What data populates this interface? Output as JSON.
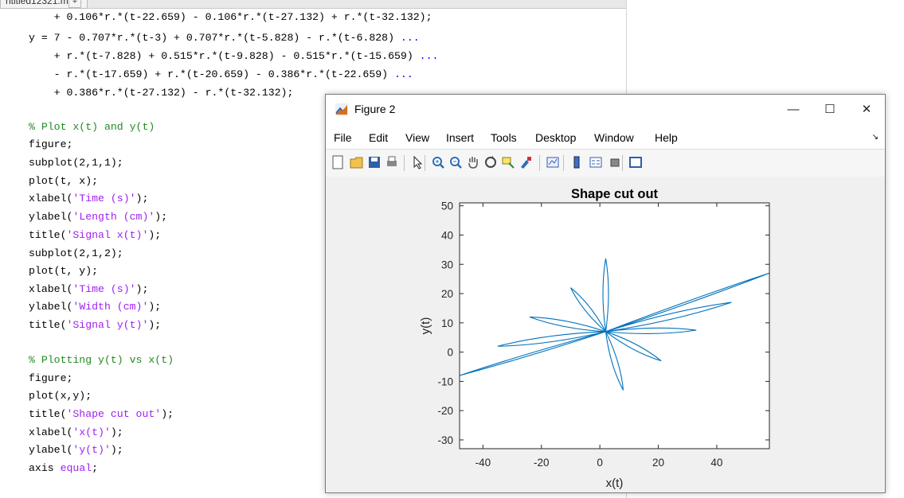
{
  "editor": {
    "tab_label": "ntitled12321.m*",
    "tab_close": "×",
    "tab_add": "+",
    "lines": [
      [
        {
          "t": "    + 0.106*r.*(t-22.659) - 0.106*r.*(t-27.132) + r.*(t-32.132);"
        }
      ],
      [
        {
          "t": "y = 7 - 0.707*r.*(t-3) + 0.707*r.*(t-5.828) - r.*(t-6.828) "
        },
        {
          "t": "...",
          "c": "kw"
        }
      ],
      [
        {
          "t": "    + r.*(t-7.828) + 0.515*r.*(t-9.828) - 0.515*r.*(t-15.659) "
        },
        {
          "t": "...",
          "c": "kw"
        }
      ],
      [
        {
          "t": "    - r.*(t-17.659) + r.*(t-20.659) - 0.386*r.*(t-22.659) "
        },
        {
          "t": "...",
          "c": "kw"
        }
      ],
      [
        {
          "t": "    + 0.386*r.*(t-27.132) - r.*(t-32.132);"
        }
      ],
      [
        {
          "t": ""
        }
      ],
      [
        {
          "t": "% Plot x(t) and y(t)",
          "c": "cmt"
        }
      ],
      [
        {
          "t": "figure;"
        }
      ],
      [
        {
          "t": "subplot(2,1,1);"
        }
      ],
      [
        {
          "t": "plot(t, x);"
        }
      ],
      [
        {
          "t": "xlabel("
        },
        {
          "t": "'Time (s)'",
          "c": "str"
        },
        {
          "t": ");"
        }
      ],
      [
        {
          "t": "ylabel("
        },
        {
          "t": "'Length (cm)'",
          "c": "str"
        },
        {
          "t": ");"
        }
      ],
      [
        {
          "t": "title("
        },
        {
          "t": "'Signal x(t)'",
          "c": "str"
        },
        {
          "t": ");"
        }
      ],
      [
        {
          "t": "subplot(2,1,2);"
        }
      ],
      [
        {
          "t": "plot(t, y);"
        }
      ],
      [
        {
          "t": "xlabel("
        },
        {
          "t": "'Time (s)'",
          "c": "str"
        },
        {
          "t": ");"
        }
      ],
      [
        {
          "t": "ylabel("
        },
        {
          "t": "'Width (cm)'",
          "c": "str"
        },
        {
          "t": ");"
        }
      ],
      [
        {
          "t": "title("
        },
        {
          "t": "'Signal y(t)'",
          "c": "str"
        },
        {
          "t": ");"
        }
      ],
      [
        {
          "t": ""
        }
      ],
      [
        {
          "t": "% Plotting y(t) vs x(t)",
          "c": "cmt"
        }
      ],
      [
        {
          "t": "figure;"
        }
      ],
      [
        {
          "t": "plot(x,y);"
        }
      ],
      [
        {
          "t": "title("
        },
        {
          "t": "'Shape cut out'",
          "c": "str"
        },
        {
          "t": ");"
        }
      ],
      [
        {
          "t": "xlabel("
        },
        {
          "t": "'x(t)'",
          "c": "str"
        },
        {
          "t": ");"
        }
      ],
      [
        {
          "t": "ylabel("
        },
        {
          "t": "'y(t)'",
          "c": "str"
        },
        {
          "t": ");"
        }
      ],
      [
        {
          "t": "axis "
        },
        {
          "t": "equal",
          "c": "str"
        },
        {
          "t": ";"
        }
      ]
    ]
  },
  "figure": {
    "title": "Figure 2",
    "icon": "matlab-logo-icon",
    "controls": {
      "minimize": "—",
      "maximize": "☐",
      "close": "✕"
    },
    "menus": [
      "File",
      "Edit",
      "View",
      "Insert",
      "Tools",
      "Desktop",
      "Window",
      "Help"
    ],
    "menu_overflow_icon": "dock-arrow-icon",
    "toolbar_icons": [
      "new-figure-icon",
      "open-file-icon",
      "save-icon",
      "print-icon",
      "select-arrow-icon",
      "zoom-in-icon",
      "zoom-out-icon",
      "pan-icon",
      "rotate-3d-icon",
      "data-cursor-icon",
      "brush-icon",
      "link-plot-icon",
      "colorbar-icon",
      "legend-icon",
      "hide-plot-tools-icon",
      "show-plot-tools-icon"
    ]
  },
  "colors": {
    "line": "#0072bd",
    "comment": "#228b22",
    "string": "#a020f0",
    "keyword": "#0000ff"
  },
  "chart_data": {
    "type": "line",
    "title": "Shape cut out",
    "xlabel": "x(t)",
    "ylabel": "y(t)",
    "xlim": [
      -48,
      58
    ],
    "ylim": [
      -33,
      51
    ],
    "xticks": [
      -40,
      -20,
      0,
      20,
      40
    ],
    "yticks": [
      -30,
      -20,
      -10,
      0,
      10,
      20,
      30,
      40,
      50
    ],
    "grid": false,
    "center": [
      2,
      7
    ],
    "series": [
      {
        "tip_points": [
          [
            -48,
            -8
          ],
          [
            58,
            27
          ],
          [
            -35,
            2
          ],
          [
            2,
            32
          ],
          [
            -10,
            22
          ],
          [
            -24,
            12
          ],
          [
            33,
            7.5
          ],
          [
            45,
            17
          ],
          [
            21,
            -3
          ],
          [
            8,
            -13
          ]
        ]
      }
    ]
  }
}
